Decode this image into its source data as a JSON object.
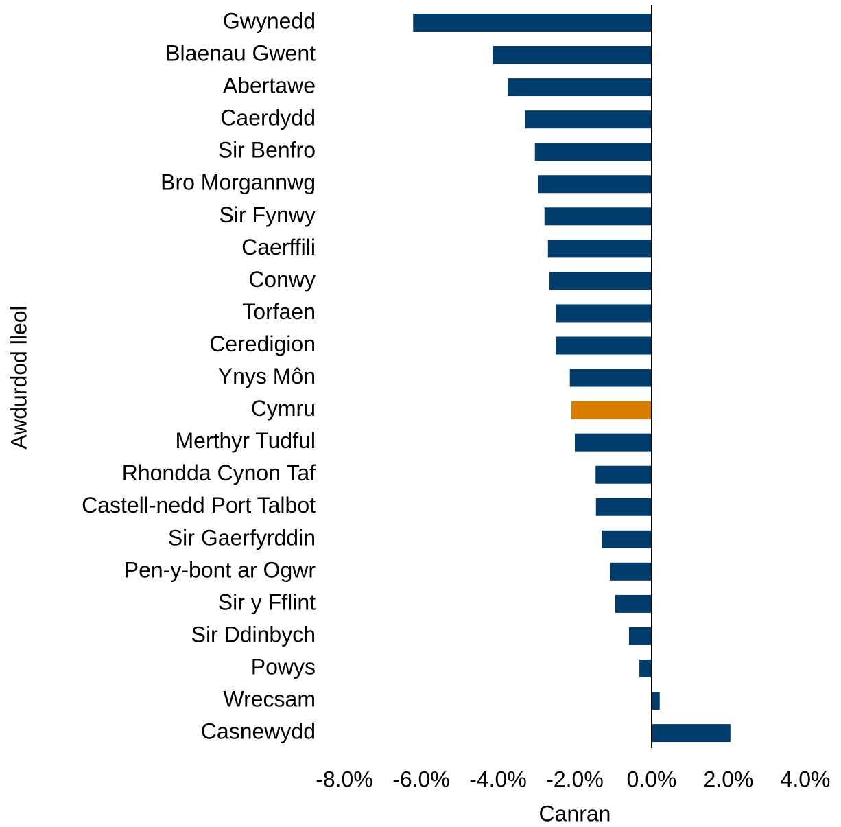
{
  "chart_data": {
    "type": "barh",
    "xlabel": "Canran",
    "ylabel": "Awdurdod lleol",
    "categories": [
      "Gwynedd",
      "Blaenau Gwent",
      "Abertawe",
      "Caerdydd",
      "Sir Benfro",
      "Bro Morgannwg",
      "Sir Fynwy",
      "Caerffili",
      "Conwy",
      "Torfaen",
      "Ceredigion",
      "Ynys Môn",
      "Cymru",
      "Merthyr Tudful",
      "Rhondda Cynon Taf",
      "Castell-nedd Port Talbot",
      "Sir Gaerfyrddin",
      "Pen-y-bont ar Ogwr",
      "Sir y Fflint",
      "Sir Ddinbych",
      "Powys",
      "Wrecsam",
      "Casnewydd"
    ],
    "values": [
      -6.21,
      -4.14,
      -3.75,
      -3.29,
      -3.04,
      -2.96,
      -2.79,
      -2.7,
      -2.66,
      -2.5,
      -2.5,
      -2.13,
      -2.09,
      -2.0,
      -1.46,
      -1.45,
      -1.3,
      -1.09,
      -0.95,
      -0.59,
      -0.32,
      0.21,
      2.05
    ],
    "colors": [
      "#003c6c",
      "#003c6c",
      "#003c6c",
      "#003c6c",
      "#003c6c",
      "#003c6c",
      "#003c6c",
      "#003c6c",
      "#003c6c",
      "#003c6c",
      "#003c6c",
      "#003c6c",
      "#d97c00",
      "#003c6c",
      "#003c6c",
      "#003c6c",
      "#003c6c",
      "#003c6c",
      "#003c6c",
      "#003c6c",
      "#003c6c",
      "#003c6c",
      "#003c6c"
    ],
    "xlim": [
      -8,
      4
    ],
    "xticks": [
      {
        "value": -8,
        "label": "-8.0%"
      },
      {
        "value": -6,
        "label": "-6.0%"
      },
      {
        "value": -4,
        "label": "-4.0%"
      },
      {
        "value": -2,
        "label": "-2.0%"
      },
      {
        "value": 0,
        "label": "0.0%"
      },
      {
        "value": 2,
        "label": "2.0%"
      },
      {
        "value": 4,
        "label": "4.0%"
      }
    ],
    "grid": false
  }
}
